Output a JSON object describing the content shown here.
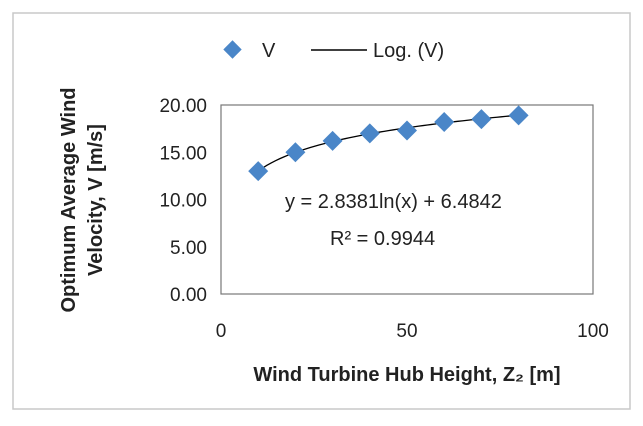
{
  "chart_data": {
    "type": "scatter",
    "x": [
      10,
      20,
      30,
      40,
      50,
      60,
      70,
      80
    ],
    "series": [
      {
        "name": "V",
        "values": [
          13.0,
          15.0,
          16.2,
          17.0,
          17.3,
          18.2,
          18.5,
          18.9
        ],
        "marker": "diamond",
        "color": "#4a86c8"
      },
      {
        "name": "Log. (V)",
        "type": "trendline",
        "color": "#000000"
      }
    ],
    "trendline": {
      "a": 2.8381,
      "b": 6.4842,
      "equation": "y = 2.8381ln(x) + 6.4842",
      "r2": "R² = 0.9944"
    },
    "xlabel": "Wind Turbine Hub Height, Z₂ [m]",
    "ylabel_line1": "Optimum Average Wind",
    "ylabel_line2": "Velocity, V [m/s]",
    "xlim": [
      0,
      100
    ],
    "ylim": [
      0,
      20
    ],
    "x_ticks": [
      "0",
      "50",
      "100"
    ],
    "y_ticks": [
      "0.00",
      "5.00",
      "10.00",
      "15.00",
      "20.00"
    ],
    "legend_placement": "top",
    "grid": false
  }
}
